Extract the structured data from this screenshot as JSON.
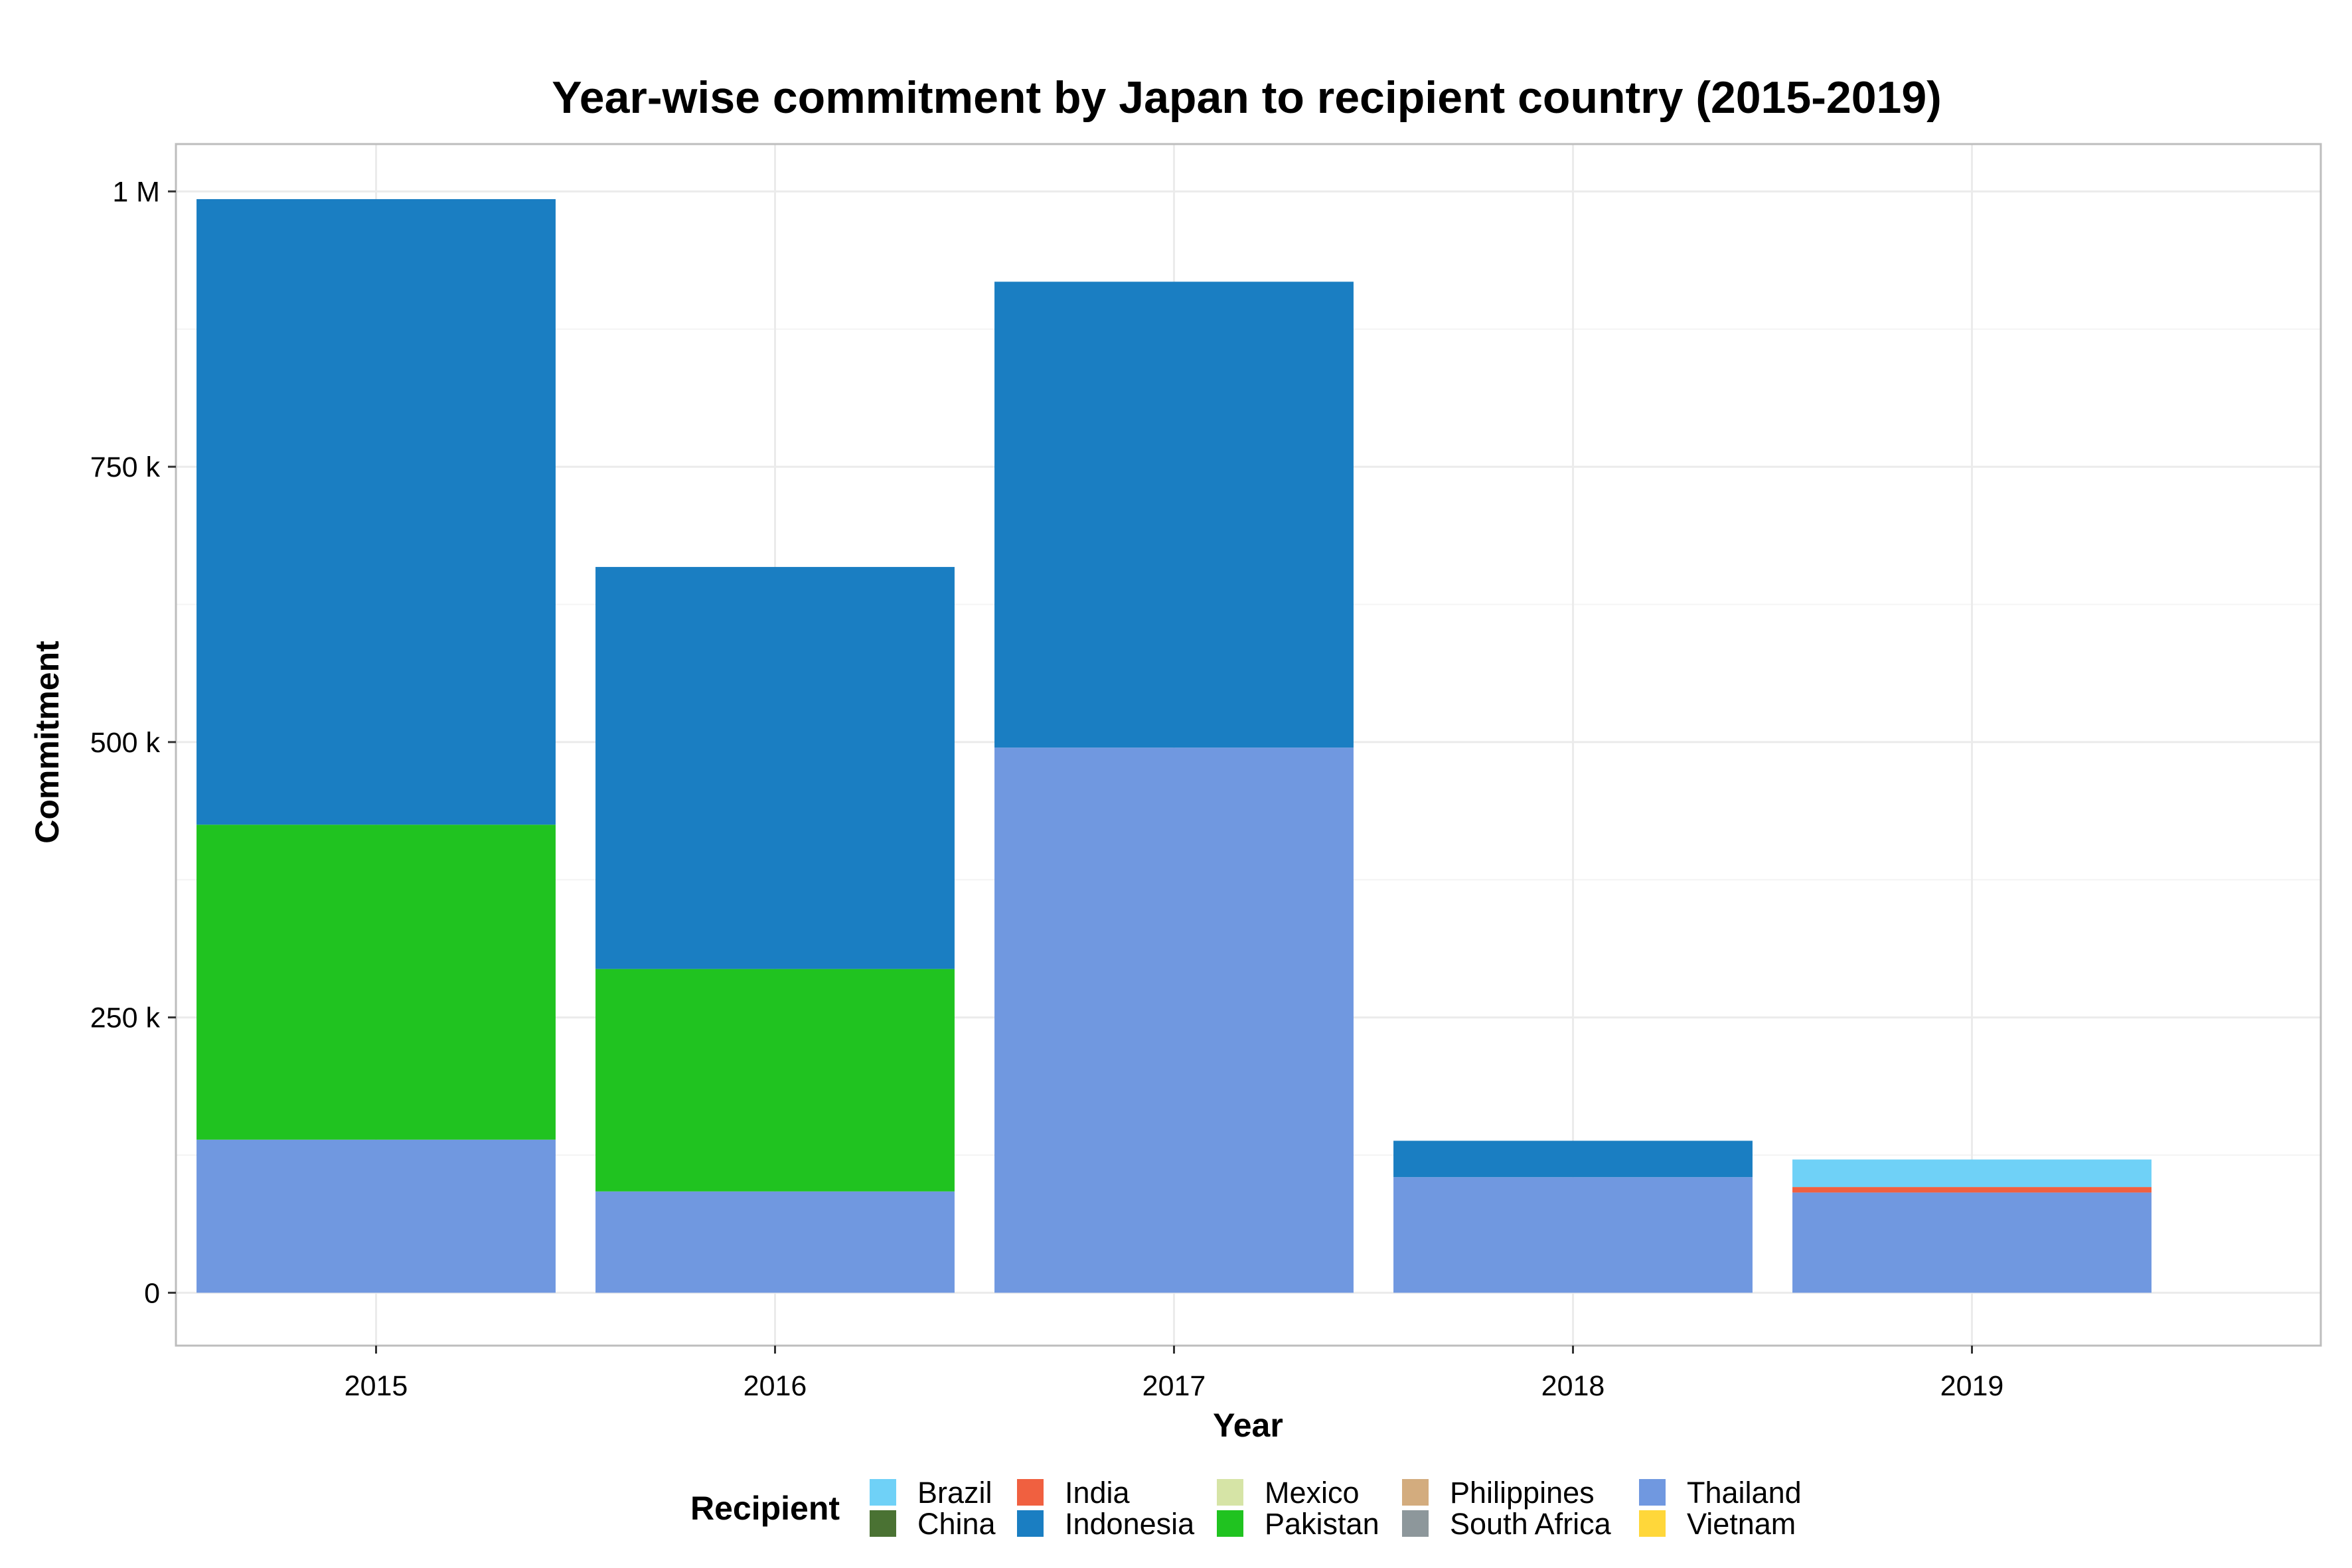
{
  "chart_data": {
    "type": "bar",
    "stacked": true,
    "title": "Year-wise commitment by Japan to recipient country (2015-2019)",
    "xlabel": "Year",
    "ylabel": "Commitment",
    "categories": [
      "2015",
      "2016",
      "2017",
      "2018",
      "2019"
    ],
    "ylim": [
      -48000,
      1043000
    ],
    "y_ticks": [
      {
        "value": 0,
        "label": "0"
      },
      {
        "value": 250000,
        "label": "250 k"
      },
      {
        "value": 500000,
        "label": "500 k"
      },
      {
        "value": 750000,
        "label": "750 k"
      },
      {
        "value": 1000000,
        "label": "1 M"
      }
    ],
    "grid": true,
    "legend_title": "Recipient",
    "legend_position": "bottom",
    "series": [
      {
        "name": "Brazil",
        "color": "#6FD1F7",
        "values": [
          0,
          0,
          0,
          0,
          25000
        ]
      },
      {
        "name": "China",
        "color": "#4A7233",
        "values": [
          0,
          0,
          0,
          0,
          0
        ]
      },
      {
        "name": "India",
        "color": "#F06040",
        "values": [
          0,
          0,
          0,
          0,
          5000
        ]
      },
      {
        "name": "Indonesia",
        "color": "#1A7EC2",
        "values": [
          568000,
          365000,
          423000,
          33000,
          0
        ]
      },
      {
        "name": "Mexico",
        "color": "#D6E4A6",
        "values": [
          0,
          0,
          0,
          0,
          0
        ]
      },
      {
        "name": "Pakistan",
        "color": "#20C320",
        "values": [
          286000,
          202000,
          0,
          0,
          0
        ]
      },
      {
        "name": "Philippines",
        "color": "#D3AC7E",
        "values": [
          0,
          0,
          0,
          0,
          0
        ]
      },
      {
        "name": "South Africa",
        "color": "#8D979B",
        "values": [
          0,
          0,
          0,
          0,
          0
        ]
      },
      {
        "name": "Thailand",
        "color": "#7098E0",
        "values": [
          139000,
          92000,
          495000,
          105000,
          91000
        ]
      },
      {
        "name": "Vietnam",
        "color": "#FFD73A",
        "values": [
          0,
          0,
          0,
          0,
          0
        ]
      }
    ],
    "stack_order_bottom_to_top": [
      "Thailand",
      "Pakistan",
      "India",
      "Indonesia",
      "Brazil",
      "China",
      "Mexico",
      "Philippines",
      "South Africa",
      "Vietnam"
    ],
    "legend_columns": [
      [
        "Brazil",
        "China"
      ],
      [
        "India",
        "Indonesia"
      ],
      [
        "Mexico",
        "Pakistan"
      ],
      [
        "Philippines",
        "South Africa"
      ],
      [
        "Thailand",
        "Vietnam"
      ]
    ]
  }
}
